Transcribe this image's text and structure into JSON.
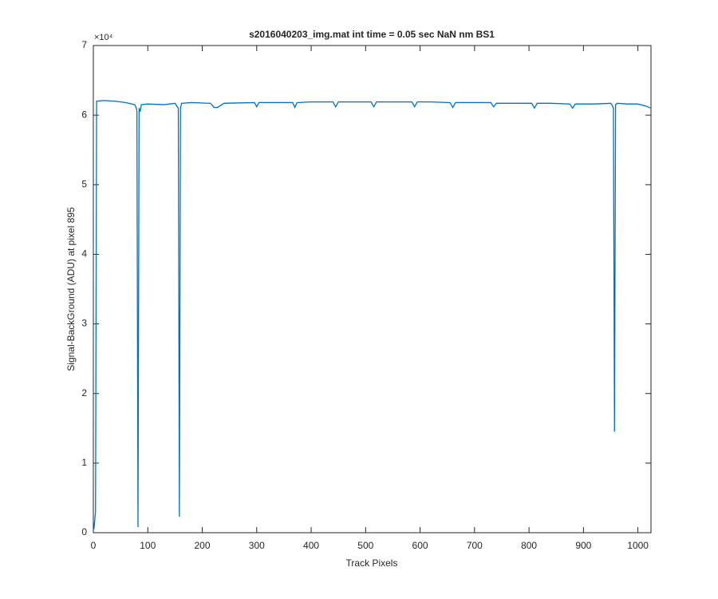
{
  "chart_data": {
    "type": "line",
    "title": "s2016040203_img.mat int time = 0.05 sec  NaN nm BS1",
    "x_label": "Track Pixels",
    "y_label": "Signal-BackGround (ADU) at pixel 895",
    "y_exponent": "×10⁴",
    "x": [
      1,
      4,
      6,
      20,
      40,
      60,
      76,
      79,
      80,
      82,
      84,
      86,
      88,
      100,
      130,
      150,
      154,
      156,
      158,
      160,
      162,
      180,
      215,
      222,
      228,
      240,
      296,
      300,
      304,
      330,
      366,
      370,
      374,
      400,
      440,
      445,
      450,
      480,
      510,
      515,
      520,
      550,
      585,
      590,
      595,
      620,
      655,
      660,
      665,
      700,
      730,
      735,
      740,
      770,
      805,
      810,
      815,
      840,
      875,
      880,
      885,
      920,
      950,
      952,
      955,
      957,
      959,
      962,
      980,
      1000,
      1015,
      1024
    ],
    "series": [
      {
        "color": "#0072bd",
        "values": [
          0.05,
          0.3,
          6.2,
          6.21,
          6.2,
          6.18,
          6.15,
          6.1,
          6.05,
          0.08,
          6.1,
          6.05,
          6.15,
          6.16,
          6.15,
          6.17,
          6.12,
          6.1,
          0.23,
          6.1,
          6.17,
          6.18,
          6.17,
          6.11,
          6.11,
          6.17,
          6.18,
          6.12,
          6.18,
          6.18,
          6.18,
          6.11,
          6.18,
          6.19,
          6.19,
          6.12,
          6.19,
          6.19,
          6.19,
          6.12,
          6.19,
          6.19,
          6.19,
          6.12,
          6.19,
          6.19,
          6.18,
          6.11,
          6.18,
          6.18,
          6.18,
          6.12,
          6.17,
          6.17,
          6.17,
          6.1,
          6.17,
          6.17,
          6.16,
          6.1,
          6.16,
          6.16,
          6.17,
          6.15,
          6.1,
          1.45,
          6.15,
          6.17,
          6.16,
          6.16,
          6.13,
          6.1
        ]
      }
    ],
    "xlim": [
      0,
      1024
    ],
    "xticks": [
      0,
      100,
      200,
      300,
      400,
      500,
      600,
      700,
      800,
      900,
      1000
    ],
    "ylim": [
      0,
      7
    ],
    "yticks": [
      0,
      1,
      2,
      3,
      4,
      5,
      6,
      7
    ],
    "grid": false
  }
}
